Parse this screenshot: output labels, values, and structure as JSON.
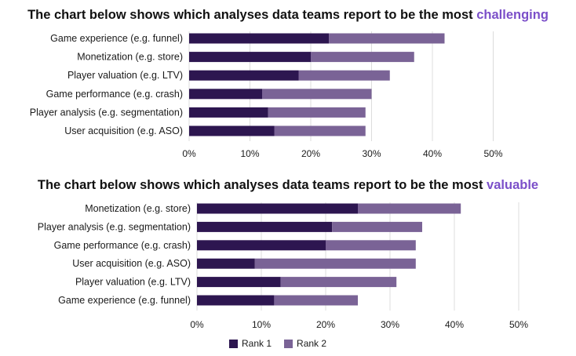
{
  "charts": [
    {
      "title_prefix": "The chart below shows which analyses data teams report to be the most ",
      "title_highlight": "challenging"
    },
    {
      "title_prefix": "The chart below shows which analyses data teams report to be the most ",
      "title_highlight": "valuable"
    }
  ],
  "legend": {
    "rank1": "Rank 1",
    "rank2": "Rank 2"
  },
  "colors": {
    "rank1": "#2d1650",
    "rank2": "#7a6396",
    "highlight": "#7b4fc9",
    "grid": "#dcdcdc"
  },
  "chart_data": [
    {
      "type": "bar",
      "orientation": "horizontal",
      "stacked": true,
      "title": "The chart below shows which analyses data teams report to be the most challenging",
      "categories": [
        "Game experience (e.g. funnel)",
        "Monetization (e.g. store)",
        "Player valuation (e.g. LTV)",
        "Game performance (e.g. crash)",
        "Player analysis (e.g. segmentation)",
        "User acquisition (e.g. ASO)"
      ],
      "series": [
        {
          "name": "Rank 1",
          "values": [
            23,
            20,
            18,
            12,
            13,
            14
          ]
        },
        {
          "name": "Rank 2",
          "values": [
            19,
            17,
            15,
            18,
            16,
            15
          ]
        }
      ],
      "ticks": [
        "0%",
        "10%",
        "20%",
        "30%",
        "40%",
        "50%"
      ],
      "xlim": [
        0,
        50
      ],
      "grid": "vertical"
    },
    {
      "type": "bar",
      "orientation": "horizontal",
      "stacked": true,
      "title": "The chart below shows which analyses data teams report to be the most valuable",
      "categories": [
        "Monetization (e.g. store)",
        "Player analysis (e.g. segmentation)",
        "Game performance (e.g. crash)",
        "User acquisition (e.g. ASO)",
        "Player valuation (e.g. LTV)",
        "Game experience (e.g. funnel)"
      ],
      "series": [
        {
          "name": "Rank 1",
          "values": [
            25,
            21,
            20,
            9,
            13,
            12
          ]
        },
        {
          "name": "Rank 2",
          "values": [
            16,
            14,
            14,
            25,
            18,
            13
          ]
        }
      ],
      "ticks": [
        "0%",
        "10%",
        "20%",
        "30%",
        "40%",
        "50%"
      ],
      "xlim": [
        0,
        50
      ],
      "grid": "vertical"
    }
  ]
}
